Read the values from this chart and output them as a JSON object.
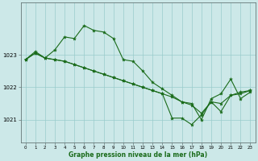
{
  "bg_color": "#cce8e8",
  "grid_color": "#99cccc",
  "line_color": "#1a6b1a",
  "marker_color": "#1a6b1a",
  "xlabel": "Graphe pression niveau de la mer (hPa)",
  "xlim": [
    -0.5,
    23.5
  ],
  "ylim": [
    1020.3,
    1024.6
  ],
  "yticks": [
    1021,
    1022,
    1023
  ],
  "xticks": [
    0,
    1,
    2,
    3,
    4,
    5,
    6,
    7,
    8,
    9,
    10,
    11,
    12,
    13,
    14,
    15,
    16,
    17,
    18,
    19,
    20,
    21,
    22,
    23
  ],
  "series": [
    [
      1022.85,
      1023.1,
      1022.9,
      1023.15,
      1023.55,
      1023.5,
      1023.9,
      1023.75,
      1023.7,
      1023.5,
      1022.85,
      1022.8,
      1022.5,
      1022.15,
      1021.95,
      1021.75,
      1021.55,
      1021.5,
      1021.0,
      1021.65,
      1021.8,
      1022.25,
      1021.65,
      1021.85
    ],
    [
      1022.85,
      1023.05,
      1022.9,
      1022.85,
      1022.8,
      1022.7,
      1022.6,
      1022.5,
      1022.4,
      1022.3,
      1022.2,
      1022.1,
      1022.0,
      1021.9,
      1021.8,
      1021.7,
      1021.55,
      1021.45,
      1021.2,
      1021.55,
      1021.5,
      1021.75,
      1021.8,
      1021.9
    ],
    [
      1022.85,
      1023.05,
      1022.9,
      1022.85,
      1022.8,
      1022.7,
      1022.6,
      1022.5,
      1022.4,
      1022.3,
      1022.2,
      1022.1,
      1022.0,
      1021.9,
      1021.8,
      1021.05,
      1021.05,
      1020.85,
      1021.15,
      1021.55,
      1021.25,
      1021.75,
      1021.85,
      1021.9
    ]
  ]
}
